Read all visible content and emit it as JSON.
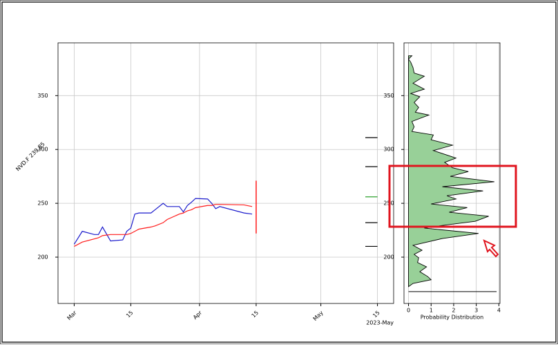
{
  "chart_data": [
    {
      "type": "line",
      "ylabel": "NVD.F 239.85",
      "x_offset_label": "2023-May",
      "x": [
        "2023-03-01",
        "2023-03-03",
        "2023-03-06",
        "2023-03-07",
        "2023-03-08",
        "2023-03-10",
        "2023-03-13",
        "2023-03-14",
        "2023-03-15",
        "2023-03-16",
        "2023-03-17",
        "2023-03-20",
        "2023-03-21",
        "2023-03-23",
        "2023-03-24",
        "2023-03-27",
        "2023-03-28",
        "2023-03-29",
        "2023-03-30",
        "2023-03-31",
        "2023-04-03",
        "2023-04-04",
        "2023-04-05",
        "2023-04-06",
        "2023-04-12",
        "2023-04-14"
      ],
      "series": [
        {
          "color": "#1a1acc",
          "values": [
            212,
            224,
            221,
            221,
            228,
            215,
            216,
            224,
            227,
            240,
            241,
            241,
            244,
            250,
            247,
            247,
            242,
            248,
            251,
            254.5,
            254,
            250,
            245,
            247,
            241,
            240
          ]
        },
        {
          "color": "#ff1a1a",
          "values": [
            210,
            214,
            217,
            218,
            220,
            221,
            221,
            221,
            222,
            224,
            226,
            228,
            229,
            232,
            235,
            240,
            241,
            243,
            244,
            246,
            248,
            248,
            249,
            249,
            248.5,
            247
          ]
        }
      ],
      "range": {
        "x": "2023-04-15",
        "low": 222,
        "high": 271,
        "color": "#ff1a1a"
      },
      "levels_x": [
        "2023-05-12",
        "2023-05-15"
      ],
      "levels": [
        {
          "value": 311,
          "color": "#000000"
        },
        {
          "value": 284,
          "color": "#000000"
        },
        {
          "value": 256,
          "color": "#2ca02c"
        },
        {
          "value": 232,
          "color": "#000000"
        },
        {
          "value": 210,
          "color": "#000000"
        }
      ],
      "xlim": [
        "2023-02-25",
        "2023-05-19"
      ],
      "xticks": [
        {
          "value": "2023-03-01",
          "label": "Mar"
        },
        {
          "value": "2023-03-15",
          "label": "15"
        },
        {
          "value": "2023-04-01",
          "label": "Apr"
        },
        {
          "value": "2023-04-15",
          "label": "15"
        },
        {
          "value": "2023-05-01",
          "label": "May"
        },
        {
          "value": "2023-05-15",
          "label": "15"
        }
      ],
      "ylim": [
        157,
        399
      ],
      "yticks": [
        200,
        250,
        300,
        350
      ],
      "grid": true
    },
    {
      "type": "density",
      "xlabel": "Probability Distribution",
      "color": "#98d098",
      "y": [
        387,
        384,
        381,
        376,
        371,
        368,
        361.5,
        356,
        352,
        349,
        343.6,
        339,
        334.6,
        332,
        326,
        321,
        316.7,
        313.5,
        309,
        304,
        299,
        292,
        288,
        283,
        279.5,
        275,
        270,
        265.4,
        261.5,
        257,
        254,
        249.4,
        246,
        241.7,
        238,
        233.3,
        230,
        227,
        222,
        217.3,
        211,
        206.4,
        202.6,
        199.4,
        195,
        191,
        186.5,
        182,
        179,
        175.6,
        172.6
      ],
      "values": [
        0.15,
        0,
        0.1,
        0.2,
        0.25,
        0.7,
        0.2,
        0.7,
        0.1,
        0.5,
        0.25,
        0.45,
        0.3,
        0.9,
        0.15,
        0.25,
        0.15,
        1.1,
        1.0,
        1.95,
        1.1,
        2.1,
        1.6,
        1.95,
        2.65,
        1.85,
        3.8,
        1.5,
        3.3,
        1.7,
        2.1,
        1.0,
        2.6,
        1.8,
        3.55,
        2.95,
        1.7,
        0.7,
        3.1,
        1.5,
        0.2,
        0.6,
        0.25,
        0.45,
        0.4,
        0.8,
        0.5,
        0.85,
        1.0,
        0.2,
        0
      ],
      "baseline": {
        "y": 168,
        "x": [
          0,
          3.9
        ]
      },
      "xlim": [
        -0.2,
        4.05
      ],
      "xticks": [
        0,
        1,
        2,
        3,
        4
      ],
      "ylim": [
        157,
        399
      ],
      "yticks": [
        200,
        250,
        300,
        350
      ],
      "grid": true
    }
  ]
}
